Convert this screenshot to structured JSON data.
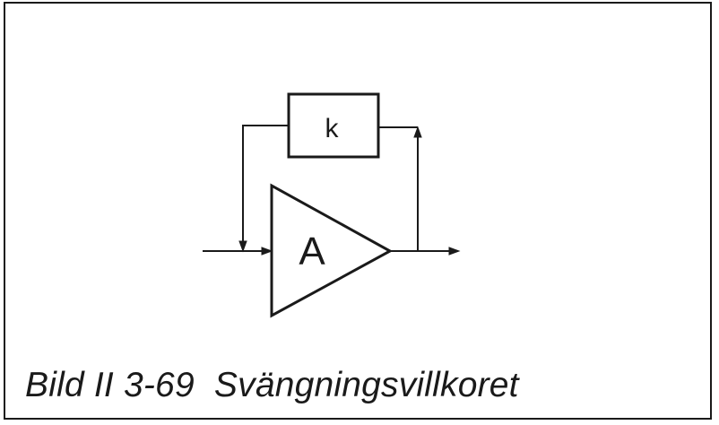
{
  "figure": {
    "feedback_block_label": "k",
    "amplifier_label": "A",
    "caption": "Bild II 3-69  Svängningsvillkoret"
  }
}
